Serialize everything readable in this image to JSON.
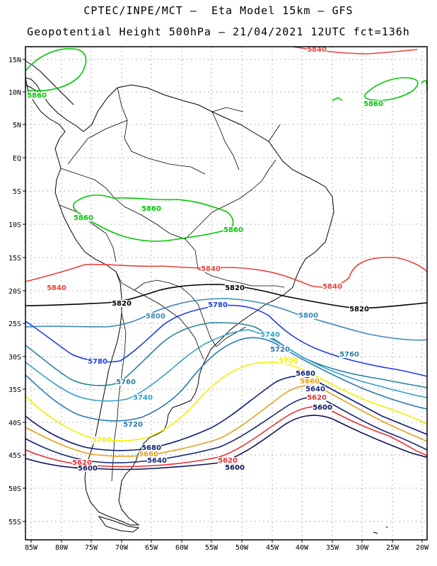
{
  "title": {
    "line1": "CPTEC/INPE/MCT –  Eta Model 15km – GFS",
    "line2": "Geopotential Height 500hPa – 21/04/2021 12UTC fct=136h"
  },
  "axes": {
    "lat_labels": [
      "15N",
      "10N",
      "5N",
      "EQ",
      "5S",
      "10S",
      "15S",
      "20S",
      "25S",
      "30S",
      "35S",
      "40S",
      "45S",
      "50S",
      "55S"
    ],
    "lon_labels": [
      "85W",
      "80W",
      "75W",
      "70W",
      "65W",
      "60W",
      "55W",
      "50W",
      "45W",
      "40W",
      "35W",
      "30W",
      "25W",
      "20W"
    ]
  },
  "colors": {
    "5860": "#00c800",
    "5840": "#e8413c",
    "5820": "#000000",
    "5800": "#3c8cb4",
    "5780": "#1e3ce6",
    "5760": "#2882a0",
    "5740": "#32a0c8",
    "5720": "#2878b4",
    "5700": "#f0f000",
    "5680": "#0a1e78",
    "5660": "#e6a01e",
    "5640": "#14287a",
    "5620": "#e63232",
    "5600": "#0a145a",
    "coast": "#000000",
    "grid": "#b4b4b4"
  },
  "contour_labels": [
    {
      "text": "5840",
      "level": "5840"
    },
    {
      "text": "5860",
      "level": "5860"
    },
    {
      "text": "5860",
      "level": "5860"
    },
    {
      "text": "5860",
      "level": "5860"
    },
    {
      "text": "5860",
      "level": "5860"
    },
    {
      "text": "5860",
      "level": "5860"
    },
    {
      "text": "5840",
      "level": "5840"
    },
    {
      "text": "5840",
      "level": "5840"
    },
    {
      "text": "5840",
      "level": "5840"
    },
    {
      "text": "5820",
      "level": "5820"
    },
    {
      "text": "5820",
      "level": "5820"
    },
    {
      "text": "5820",
      "level": "5820"
    },
    {
      "text": "5800",
      "level": "5800"
    },
    {
      "text": "5780",
      "level": "5780"
    },
    {
      "text": "5800",
      "level": "5800"
    },
    {
      "text": "5740",
      "level": "5740"
    },
    {
      "text": "5720",
      "level": "5720"
    },
    {
      "text": "5760",
      "level": "5760"
    },
    {
      "text": "5780",
      "level": "5780"
    },
    {
      "text": "5760",
      "level": "5760"
    },
    {
      "text": "5740",
      "level": "5740"
    },
    {
      "text": "5720",
      "level": "5720"
    },
    {
      "text": "5700",
      "level": "5700"
    },
    {
      "text": "5700",
      "level": "5700"
    },
    {
      "text": "5680",
      "level": "5680"
    },
    {
      "text": "5660",
      "level": "5660"
    },
    {
      "text": "5640",
      "level": "5640"
    },
    {
      "text": "5620",
      "level": "5620"
    },
    {
      "text": "5600",
      "level": "5600"
    },
    {
      "text": "5680",
      "level": "5680"
    },
    {
      "text": "5660",
      "level": "5660"
    },
    {
      "text": "5640",
      "level": "5640"
    },
    {
      "text": "5620",
      "level": "5620"
    },
    {
      "text": "5600",
      "level": "5600"
    },
    {
      "text": "5620",
      "level": "5620"
    },
    {
      "text": "5600",
      "level": "5600"
    }
  ]
}
